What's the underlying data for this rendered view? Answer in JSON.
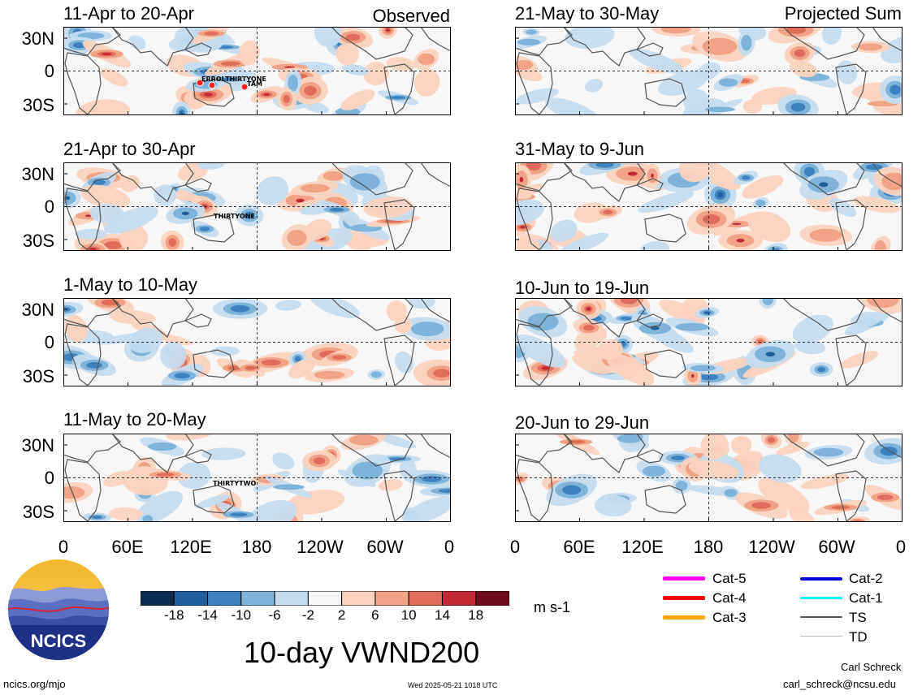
{
  "header": {
    "observed_label": "Observed",
    "projected_label": "Projected Sum"
  },
  "observed_panels": [
    {
      "title": "11-Apr to 20-Apr",
      "storms": [
        "ERROL",
        "THIRTYONE",
        "TAM"
      ]
    },
    {
      "title": "21-Apr to 30-Apr",
      "storms": [
        "THIRTYONE"
      ]
    },
    {
      "title": "1-May to 10-May",
      "storms": []
    },
    {
      "title": "11-May to 20-May",
      "storms": [
        "THIRTYTWO"
      ]
    }
  ],
  "projected_panels": [
    {
      "title": "21-May to 30-May"
    },
    {
      "title": "31-May to 9-Jun"
    },
    {
      "title": "10-Jun to 19-Jun"
    },
    {
      "title": "20-Jun to 29-Jun"
    }
  ],
  "lat_labels": [
    "30N",
    "0",
    "30S"
  ],
  "lon_labels": [
    "0",
    "60E",
    "120E",
    "180",
    "120W",
    "60W",
    "0"
  ],
  "colorbar": {
    "tick_labels": [
      "-18",
      "-14",
      "-10",
      "-6",
      "-2",
      "2",
      "6",
      "10",
      "14",
      "18"
    ],
    "units": "m s-1",
    "colors": [
      "#0b2d52",
      "#1f5f9e",
      "#3d82c0",
      "#7fb3d8",
      "#c6dcee",
      "#f6f6f6",
      "#fbd3c0",
      "#f2a286",
      "#e06d5a",
      "#bf2a36",
      "#6d0a1d"
    ]
  },
  "title": "10-day VWND200",
  "legend": [
    {
      "label": "Cat-5",
      "color": "#ff00ff"
    },
    {
      "label": "Cat-4",
      "color": "#ff0000"
    },
    {
      "label": "Cat-3",
      "color": "#ffa500"
    },
    {
      "label": "Cat-2",
      "color": "#0000dd"
    },
    {
      "label": "Cat-1",
      "color": "#00ffff"
    },
    {
      "label": "TS",
      "color": "#555555"
    },
    {
      "label": "TD",
      "color": "#bbbbbb"
    }
  ],
  "logo": {
    "text": "NCICS"
  },
  "footer": {
    "url": "ncics.org/mjo",
    "timestamp": "Wed 2025-05-21 1018 UTC",
    "author": "Carl Schreck",
    "email": "carl_schreck@ncsu.edu"
  }
}
